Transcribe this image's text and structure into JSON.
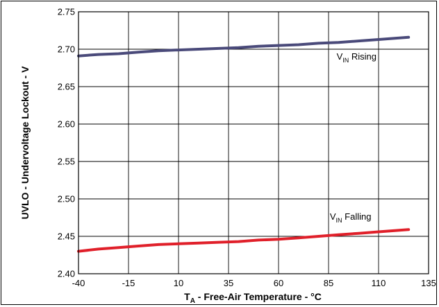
{
  "chart_data": {
    "type": "line",
    "title": "",
    "xlabel": {
      "main": "T",
      "sub": "A",
      "rest": " - Free-Air Temperature - °C"
    },
    "ylabel": "UVLO - Undervoltage Lockout - V",
    "xlim": [
      -40,
      135
    ],
    "ylim": [
      2.4,
      2.75
    ],
    "x_ticks": [
      -40,
      -15,
      10,
      35,
      60,
      85,
      110,
      135
    ],
    "x_tick_labels": [
      "-40",
      "-15",
      "10",
      "35",
      "60",
      "85",
      "110",
      "135"
    ],
    "y_ticks": [
      2.4,
      2.45,
      2.5,
      2.55,
      2.6,
      2.65,
      2.7,
      2.75
    ],
    "y_tick_labels": [
      "2.40",
      "2.45",
      "2.50",
      "2.55",
      "2.60",
      "2.65",
      "2.70",
      "2.75"
    ],
    "grid": true,
    "series": [
      {
        "key": "rising",
        "color": "#4a4a7a",
        "x": [
          -40,
          -30,
          -20,
          -10,
          0,
          10,
          20,
          30,
          40,
          50,
          60,
          70,
          80,
          90,
          100,
          110,
          125
        ],
        "y": [
          2.691,
          2.693,
          2.694,
          2.696,
          2.698,
          2.699,
          2.7,
          2.701,
          2.702,
          2.704,
          2.705,
          2.706,
          2.708,
          2.709,
          2.711,
          2.713,
          2.716
        ]
      },
      {
        "key": "falling",
        "color": "#e0202a",
        "x": [
          -40,
          -30,
          -20,
          -10,
          0,
          10,
          20,
          30,
          40,
          50,
          60,
          70,
          80,
          90,
          100,
          110,
          125
        ],
        "y": [
          2.43,
          2.433,
          2.435,
          2.437,
          2.439,
          2.44,
          2.441,
          2.442,
          2.443,
          2.445,
          2.446,
          2.448,
          2.45,
          2.452,
          2.454,
          2.456,
          2.459
        ]
      }
    ],
    "annotations": [
      {
        "series": "rising",
        "main": "V",
        "sub": "IN",
        "rest": " Rising",
        "at_x": 99,
        "at_y": 2.686
      },
      {
        "series": "falling",
        "main": "V",
        "sub": "IN",
        "rest": " Falling",
        "at_x": 96,
        "at_y": 2.472
      }
    ]
  }
}
